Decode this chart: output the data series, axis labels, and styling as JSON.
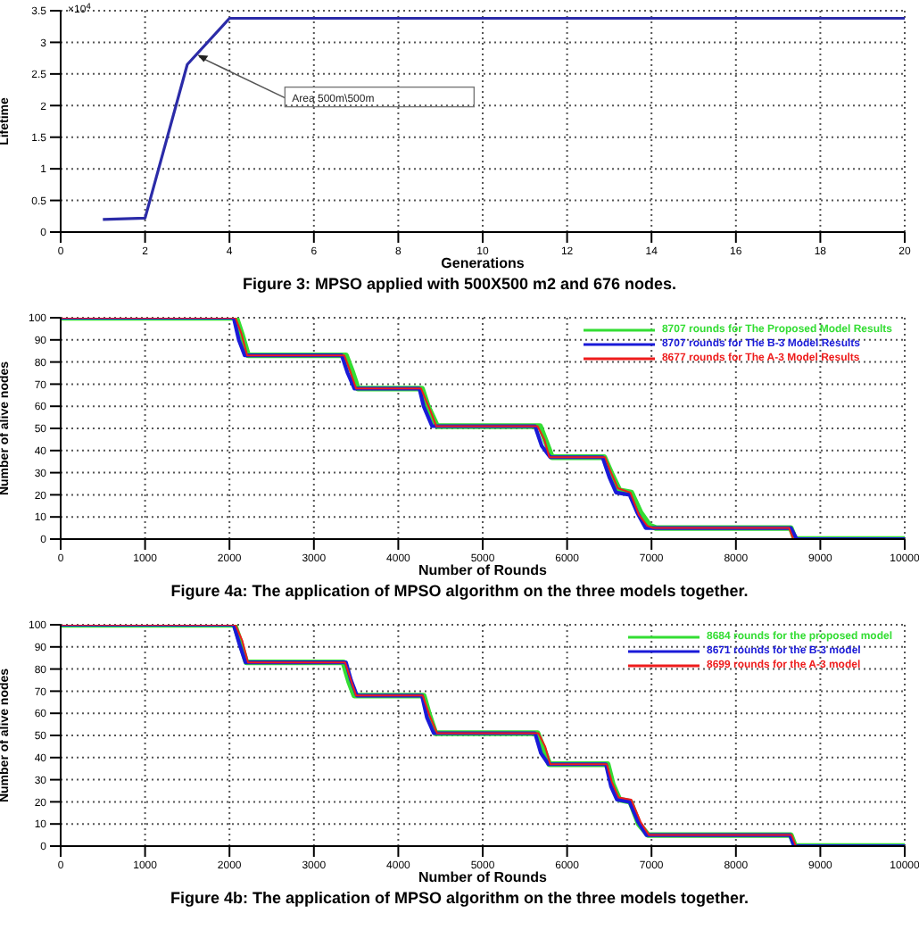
{
  "chart_data": [
    {
      "type": "line",
      "title": "Figure 3: MPSO applied with 500X500 m2 and 676 nodes.",
      "xlabel": "Generations",
      "ylabel": "Lifetime",
      "annotations": [
        "×10$^{4}$",
        {
          "text": "Area 500m\\500m",
          "x": 3.2,
          "y": 2.8
        }
      ],
      "x": [
        1,
        2,
        3,
        4,
        5,
        6,
        7,
        8,
        9,
        10,
        11,
        12,
        13,
        14,
        15,
        16,
        17,
        18,
        19,
        20
      ],
      "series": [
        {
          "color": "#2b2ba8",
          "values": [
            0.2,
            0.22,
            2.65,
            3.38,
            3.38,
            3.38,
            3.38,
            3.38,
            3.38,
            3.38,
            3.38,
            3.38,
            3.38,
            3.38,
            3.38,
            3.38,
            3.38,
            3.38,
            3.38,
            3.38
          ]
        }
      ],
      "xlim": [
        0,
        20
      ],
      "xticks": [
        0,
        2,
        4,
        6,
        8,
        10,
        12,
        14,
        16,
        18,
        20
      ],
      "ylim": [
        0,
        3.5
      ],
      "yticks": [
        0,
        0.5,
        1,
        1.5,
        2,
        2.5,
        3,
        3.5
      ],
      "grid": true
    },
    {
      "type": "line",
      "title": "Figure 4a: The application of MPSO algorithm on the three models together.",
      "xlabel": "Number of Rounds",
      "ylabel": "Number of alive nodes",
      "legend": "top right",
      "series": [
        {
          "name": "8707 rounds for The Proposed Model Results",
          "color": "#33dd33",
          "x": [
            0,
            2080,
            2150,
            2220,
            3380,
            3450,
            3520,
            4280,
            4350,
            4460,
            5680,
            5750,
            5820,
            6440,
            6520,
            6620,
            6760,
            6870,
            6980,
            7050,
            8650,
            8700,
            10000
          ],
          "values": [
            100,
            100,
            92,
            83,
            83,
            76,
            68,
            68,
            60,
            51,
            51,
            44,
            37,
            37,
            30,
            22,
            21,
            12,
            6,
            5,
            5,
            0,
            0
          ]
        },
        {
          "name": "8707 rounds for The B-3 Model Results",
          "color": "#1a1ad8",
          "x": [
            0,
            2050,
            2110,
            2180,
            3330,
            3400,
            3480,
            4250,
            4300,
            4400,
            5620,
            5700,
            5800,
            6420,
            6500,
            6580,
            6740,
            6830,
            6930,
            7000,
            8650,
            8720,
            10000
          ],
          "values": [
            100,
            100,
            90,
            83,
            83,
            75,
            68,
            68,
            60,
            51,
            51,
            42,
            37,
            37,
            28,
            21,
            20,
            12,
            5,
            5,
            5,
            0,
            0
          ]
        },
        {
          "name": "8677 rounds for The A-3 Model Results",
          "color": "#ee1c1c",
          "x": [
            0,
            2070,
            2140,
            2210,
            3360,
            3420,
            3500,
            4270,
            4380,
            4450,
            5650,
            5730,
            5790,
            6450,
            6510,
            6600,
            6750,
            6850,
            6950,
            7020,
            8630,
            8680,
            10000
          ],
          "values": [
            100,
            100,
            93,
            83,
            83,
            77,
            68,
            68,
            58,
            51,
            51,
            45,
            37,
            37,
            31,
            23,
            21,
            11,
            6,
            5,
            5,
            0,
            0
          ]
        }
      ],
      "xlim": [
        0,
        10000
      ],
      "xticks": [
        0,
        1000,
        2000,
        3000,
        4000,
        5000,
        6000,
        7000,
        8000,
        9000,
        10000
      ],
      "ylim": [
        0,
        100
      ],
      "yticks": [
        0,
        10,
        20,
        30,
        40,
        50,
        60,
        70,
        80,
        90,
        100
      ],
      "grid": true
    },
    {
      "type": "line",
      "title": "Figure 4b: The application of MPSO algorithm on the three models together.",
      "xlabel": "Number of Rounds",
      "ylabel": "Number of alive nodes",
      "legend": "top right",
      "series": [
        {
          "name": "8684 rounds for the proposed model",
          "color": "#33dd33",
          "x": [
            0,
            2060,
            2130,
            2200,
            3350,
            3420,
            3480,
            4300,
            4360,
            4440,
            5650,
            5720,
            5790,
            6480,
            6540,
            6620,
            6750,
            6850,
            6960,
            8650,
            8700,
            10000
          ],
          "values": [
            100,
            100,
            92,
            83,
            83,
            74,
            68,
            68,
            60,
            51,
            51,
            44,
            37,
            37,
            28,
            21,
            20,
            10,
            5,
            5,
            0,
            0
          ]
        },
        {
          "name": "8671 rounds for the B-3 model",
          "color": "#1a1ad8",
          "x": [
            0,
            2050,
            2120,
            2190,
            3380,
            3440,
            3510,
            4280,
            4340,
            4420,
            5620,
            5690,
            5780,
            6460,
            6520,
            6590,
            6740,
            6840,
            6940,
            8640,
            8690,
            10000
          ],
          "values": [
            100,
            100,
            91,
            83,
            83,
            75,
            68,
            68,
            58,
            51,
            51,
            42,
            37,
            37,
            27,
            21,
            20,
            11,
            5,
            5,
            0,
            0
          ]
        },
        {
          "name": "8699 rounds for the A-3 model",
          "color": "#ee1c1c",
          "x": [
            0,
            2070,
            2150,
            2220,
            3370,
            3430,
            3500,
            4290,
            4370,
            4460,
            5660,
            5740,
            5800,
            6470,
            6530,
            6610,
            6760,
            6870,
            6970,
            8660,
            8710,
            10000
          ],
          "values": [
            100,
            100,
            93,
            83,
            83,
            76,
            68,
            68,
            59,
            51,
            51,
            45,
            37,
            37,
            29,
            22,
            21,
            11,
            5,
            5,
            0,
            0
          ]
        }
      ],
      "xlim": [
        0,
        10000
      ],
      "xticks": [
        0,
        1000,
        2000,
        3000,
        4000,
        5000,
        6000,
        7000,
        8000,
        9000,
        10000
      ],
      "ylim": [
        0,
        100
      ],
      "yticks": [
        0,
        10,
        20,
        30,
        40,
        50,
        60,
        70,
        80,
        90,
        100
      ],
      "grid": true
    }
  ]
}
